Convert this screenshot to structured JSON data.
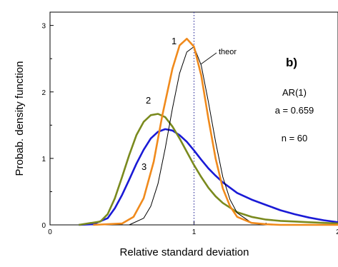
{
  "chart_data": {
    "type": "line",
    "xlabel": "Relative standard deviation",
    "ylabel": "Probab. density function",
    "xlim": [
      0,
      2
    ],
    "ylim": [
      0,
      3.2
    ],
    "xticks": [
      "0",
      "1",
      "2"
    ],
    "yticks": [
      "0",
      "1",
      "2",
      "3"
    ],
    "grid": false,
    "reference_line": {
      "x": 1,
      "style": "dotted",
      "color": "#3a3aa0"
    },
    "panel_label": "b)",
    "annotations": {
      "model": "AR(1)",
      "param": "a = 0.659",
      "n": "n = 60"
    },
    "series": [
      {
        "name": "1",
        "color": "#f08a1c",
        "x": [
          0.3,
          0.5,
          0.58,
          0.65,
          0.72,
          0.78,
          0.85,
          0.9,
          0.95,
          1.0,
          1.05,
          1.1,
          1.15,
          1.2,
          1.25,
          1.3,
          1.4,
          1.5,
          1.6,
          2.0
        ],
        "y": [
          0.0,
          0.02,
          0.12,
          0.4,
          0.95,
          1.65,
          2.35,
          2.7,
          2.8,
          2.68,
          2.25,
          1.6,
          1.0,
          0.55,
          0.28,
          0.12,
          0.03,
          0.01,
          0.0,
          0.0
        ]
      },
      {
        "name": "2",
        "color": "#7a8a1e",
        "x": [
          0.2,
          0.35,
          0.4,
          0.45,
          0.5,
          0.55,
          0.6,
          0.65,
          0.7,
          0.75,
          0.8,
          0.85,
          0.9,
          0.95,
          1.0,
          1.05,
          1.1,
          1.15,
          1.2,
          1.3,
          1.4,
          1.5,
          1.6,
          1.7,
          1.8,
          2.0
        ],
        "y": [
          0.0,
          0.05,
          0.16,
          0.4,
          0.72,
          1.05,
          1.35,
          1.55,
          1.65,
          1.67,
          1.62,
          1.48,
          1.3,
          1.1,
          0.9,
          0.72,
          0.56,
          0.43,
          0.33,
          0.19,
          0.12,
          0.08,
          0.06,
          0.05,
          0.04,
          0.02
        ]
      },
      {
        "name": "3",
        "color": "#1a1ad6",
        "x": [
          0.2,
          0.3,
          0.4,
          0.45,
          0.5,
          0.55,
          0.6,
          0.65,
          0.7,
          0.75,
          0.8,
          0.85,
          0.9,
          0.95,
          1.0,
          1.05,
          1.1,
          1.15,
          1.2,
          1.3,
          1.4,
          1.5,
          1.6,
          1.7,
          1.8,
          1.9,
          2.0
        ],
        "y": [
          0.0,
          0.01,
          0.1,
          0.25,
          0.45,
          0.68,
          0.92,
          1.13,
          1.3,
          1.4,
          1.44,
          1.42,
          1.35,
          1.25,
          1.12,
          0.98,
          0.85,
          0.74,
          0.64,
          0.48,
          0.38,
          0.3,
          0.22,
          0.16,
          0.11,
          0.07,
          0.04
        ]
      },
      {
        "name": "theor",
        "color": "#000000",
        "x": [
          0.55,
          0.65,
          0.7,
          0.75,
          0.8,
          0.85,
          0.9,
          0.95,
          1.0,
          1.05,
          1.1,
          1.15,
          1.2,
          1.25,
          1.3,
          1.4,
          1.5
        ],
        "y": [
          0.0,
          0.1,
          0.28,
          0.62,
          1.15,
          1.75,
          2.28,
          2.6,
          2.68,
          2.4,
          1.85,
          1.25,
          0.72,
          0.38,
          0.18,
          0.03,
          0.0
        ]
      }
    ]
  }
}
